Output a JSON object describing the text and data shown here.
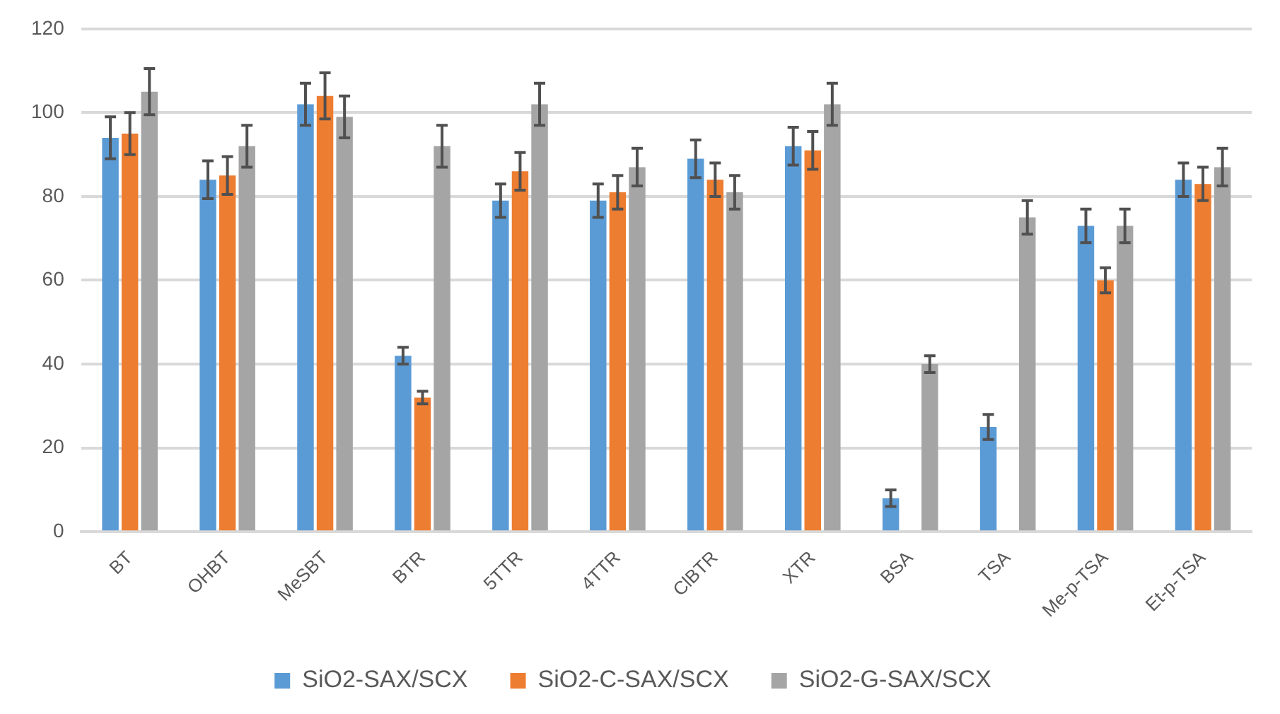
{
  "chart_data": {
    "type": "bar",
    "categories": [
      "BT",
      "OHBT",
      "MeSBT",
      "BTR",
      "5TTR",
      "4TTR",
      "ClBTR",
      "XTR",
      "BSA",
      "TSA",
      "Me-p-TSA",
      "Et-p-TSA"
    ],
    "series": [
      {
        "name": "SiO2-SAX/SCX",
        "color": "#5b9bd5",
        "values": [
          94,
          84,
          102,
          42,
          79,
          79,
          89,
          92,
          8,
          25,
          73,
          84
        ],
        "errors": [
          5,
          4.5,
          5,
          2,
          4,
          4,
          4.5,
          4.5,
          2,
          3,
          4,
          4
        ]
      },
      {
        "name": "SiO2-C-SAX/SCX",
        "color": "#ed7d31",
        "values": [
          95,
          85,
          104,
          32,
          86,
          81,
          84,
          91,
          0,
          0,
          60,
          83
        ],
        "errors": [
          5,
          4.5,
          5.5,
          1.5,
          4.5,
          4,
          4,
          4.5,
          null,
          null,
          3,
          4
        ]
      },
      {
        "name": "SiO2-G-SAX/SCX",
        "color": "#a5a5a5",
        "values": [
          105,
          92,
          99,
          92,
          102,
          87,
          81,
          102,
          40,
          75,
          73,
          87
        ],
        "errors": [
          5.5,
          5,
          5,
          5,
          5,
          4.5,
          4,
          5,
          2,
          4,
          4,
          4.5
        ]
      }
    ],
    "ylim": [
      0,
      120
    ],
    "yticks": [
      0,
      20,
      40,
      60,
      80,
      100,
      120
    ],
    "grid": "y",
    "legend": "bottom"
  }
}
